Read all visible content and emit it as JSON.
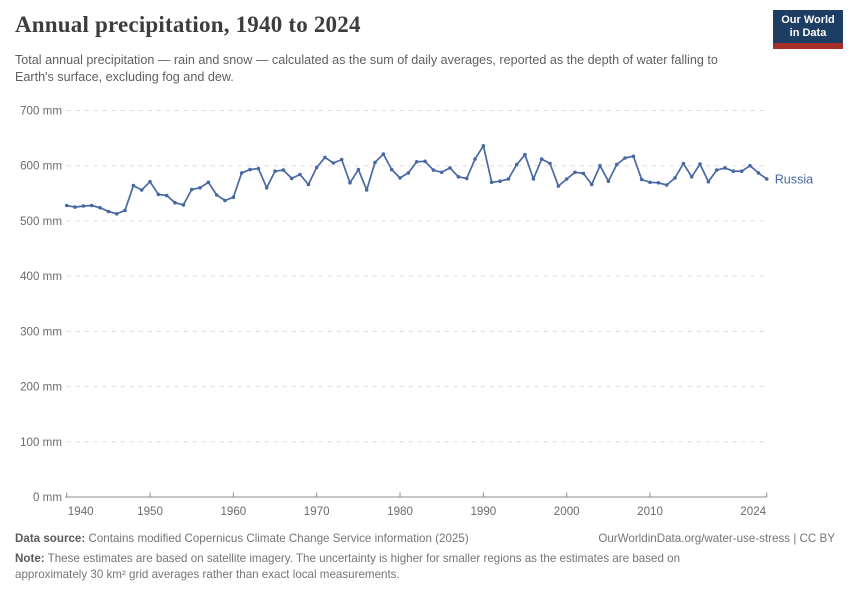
{
  "header": {
    "title": "Annual precipitation, 1940 to 2024",
    "subtitle": "Total annual precipitation — rain and snow — calculated as the sum of daily averages, reported as the depth of water falling to Earth's surface, excluding fog and dew.",
    "logo_line1": "Our World",
    "logo_line2": "in Data",
    "logo_bg_color": "#1d3d63",
    "logo_bar_color": "#a62f28"
  },
  "chart_data": {
    "type": "line",
    "title": "Annual precipitation, 1940 to 2024",
    "xlabel": "",
    "ylabel": "",
    "unit_suffix": " mm",
    "ylim": [
      0,
      700
    ],
    "y_ticks": [
      0,
      100,
      200,
      300,
      400,
      500,
      600,
      700
    ],
    "x_ticks": [
      1940,
      1950,
      1960,
      1970,
      1980,
      1990,
      2000,
      2010,
      2024
    ],
    "grid": "horizontal-dashed",
    "legend_position": "end-of-line-label",
    "series": [
      {
        "name": "Russia",
        "color": "#4868a3",
        "start_year": 1940,
        "end_year": 2024,
        "years": [
          1940,
          1941,
          1942,
          1943,
          1944,
          1945,
          1946,
          1947,
          1948,
          1949,
          1950,
          1951,
          1952,
          1953,
          1954,
          1955,
          1956,
          1957,
          1958,
          1959,
          1960,
          1961,
          1962,
          1963,
          1964,
          1965,
          1966,
          1967,
          1968,
          1969,
          1970,
          1971,
          1972,
          1973,
          1974,
          1975,
          1976,
          1977,
          1978,
          1979,
          1980,
          1981,
          1982,
          1983,
          1984,
          1985,
          1986,
          1987,
          1988,
          1989,
          1990,
          1991,
          1992,
          1993,
          1994,
          1995,
          1996,
          1997,
          1998,
          1999,
          2000,
          2001,
          2002,
          2003,
          2004,
          2005,
          2006,
          2007,
          2008,
          2009,
          2010,
          2011,
          2012,
          2013,
          2014,
          2015,
          2016,
          2017,
          2018,
          2019,
          2020,
          2021,
          2022,
          2023,
          2024
        ],
        "values": [
          528,
          525,
          527,
          528,
          524,
          517,
          513,
          519,
          564,
          556,
          571,
          548,
          546,
          533,
          529,
          557,
          560,
          570,
          547,
          537,
          543,
          587,
          593,
          595,
          560,
          590,
          592,
          577,
          584,
          566,
          597,
          615,
          605,
          611,
          569,
          593,
          556,
          606,
          621,
          593,
          578,
          587,
          607,
          608,
          592,
          588,
          596,
          580,
          577,
          612,
          636,
          570,
          572,
          576,
          602,
          620,
          576,
          612,
          604,
          563,
          576,
          588,
          586,
          566,
          600,
          572,
          602,
          614,
          617,
          575,
          570,
          569,
          565,
          578,
          604,
          580,
          603,
          571,
          592,
          596,
          590,
          590,
          600,
          587,
          576
        ]
      }
    ],
    "colors": {
      "gridline": "#dcdcdc",
      "axis_line": "#8c8c8c",
      "tick_label": "#6b6b6b"
    }
  },
  "footer": {
    "data_source_label": "Data source:",
    "data_source_text": "Contains modified Copernicus Climate Change Service information (2025)",
    "link_text": "OurWorldinData.org/water-use-stress | CC BY",
    "note_label": "Note:",
    "note_text": "These estimates are based on satellite imagery. The uncertainty is higher for smaller regions as the estimates are based on approximately 30 km² grid averages rather than exact local measurements."
  }
}
